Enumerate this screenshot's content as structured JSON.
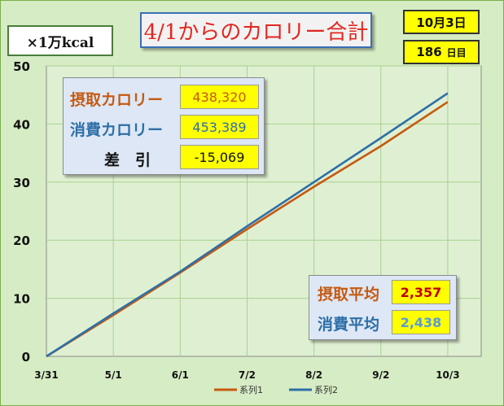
{
  "title": "4/1からのカロリー合計",
  "unit_label": "×1万kcal",
  "current_date": "10月3日",
  "day_count": "186",
  "day_unit": "日目",
  "summary": {
    "intake_label": "摂取カロリー",
    "intake_value": "438,320",
    "burn_label": "消費カロリー",
    "burn_value": "453,389",
    "diff_label": "差　引",
    "diff_value": "-15,069"
  },
  "averages": {
    "intake_avg_label": "摂取平均",
    "intake_avg_value": "2,357",
    "burn_avg_label": "消費平均",
    "burn_avg_value": "2,438"
  },
  "colors": {
    "series1": "#c55a11",
    "series2": "#2e6fa7",
    "plot_bg": "#dff0d2",
    "grid": "#a9d08e"
  },
  "chart_data": {
    "type": "line",
    "title": "4/1からのカロリー合計",
    "ylabel": "×1万kcal",
    "xlabel": "",
    "categories": [
      "3/31",
      "5/1",
      "6/1",
      "7/2",
      "8/2",
      "9/2",
      "10/3"
    ],
    "y_ticks": [
      "0",
      "10",
      "20",
      "30",
      "40",
      "50"
    ],
    "ylim": [
      0,
      50
    ],
    "grid": true,
    "legend": "bottom",
    "series": [
      {
        "name": "系列1",
        "values": [
          0,
          7.1,
          14.4,
          21.9,
          29.2,
          36.2,
          43.8
        ]
      },
      {
        "name": "系列2",
        "values": [
          0,
          7.4,
          14.6,
          22.4,
          30.0,
          37.6,
          45.3
        ]
      }
    ]
  }
}
